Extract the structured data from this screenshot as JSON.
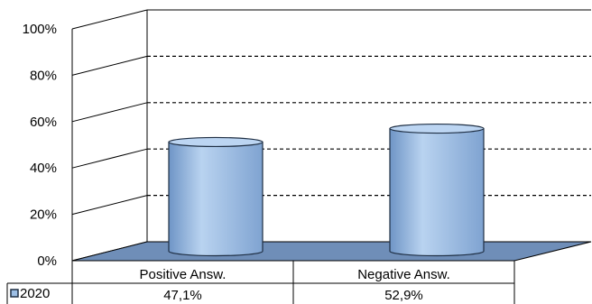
{
  "chart_data": {
    "type": "bar",
    "style": "3d-cylinder",
    "categories": [
      "Positive Answ.",
      "Negative Answ."
    ],
    "series": [
      {
        "name": "2020",
        "values": [
          47.1,
          52.9
        ],
        "labels": [
          "47,1%",
          "52,9%"
        ],
        "color": "#9dbfe6"
      }
    ],
    "ylim": [
      0,
      100
    ],
    "yticks": [
      "0%",
      "20%",
      "40%",
      "60%",
      "80%",
      "100%"
    ],
    "grid": true,
    "legend": "data-table",
    "colors": {
      "floor": "#6f8eb8",
      "gridline": "#000000",
      "bar_fill": "#9dbfe6",
      "bar_top": "#bcd5f2",
      "bar_stroke": "#1f2f44"
    }
  }
}
